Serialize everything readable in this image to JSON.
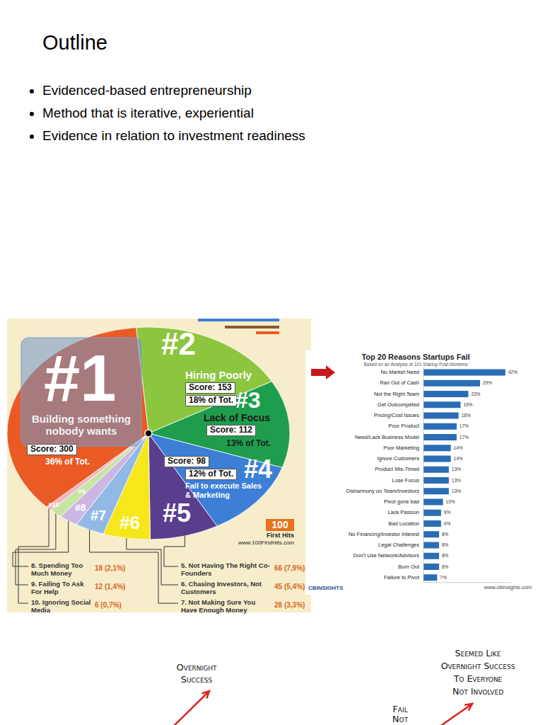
{
  "header": {
    "title": "Outline",
    "bullets": [
      "Evidenced-based entrepreneurship",
      "Method that is iterative, experiential",
      "Evidence in relation to investment readiness"
    ]
  },
  "chart_data": [
    {
      "type": "pie",
      "categories": [
        "Building something nobody wants",
        "Hiring Poorly",
        "Lack of Focus",
        "Fail to execute Sales & Marketing",
        "5. Not Having The Right Co-Founders",
        "6. Chasing Investors, Not Customers",
        "7. Not Making Sure You Have Enough Money",
        "8. Spending Too Much Money",
        "9. Failing To Ask For Help",
        "10. Ignoring Social Media"
      ],
      "values": [
        300,
        153,
        112,
        98,
        66,
        45,
        28,
        18,
        12,
        6
      ],
      "value_labels": [
        "Score: 300",
        "Score: 153",
        "Score: 112",
        "Score: 98",
        "66 (7,9%)",
        "45 (5,4%)",
        "28 (3,3%)",
        "18 (2,1%)",
        "12 (1,4%)",
        "6 (0,7%)"
      ],
      "percent_labels": [
        "36% of Tot.",
        "18% of Tot.",
        "13% of Tot.",
        "12% of Tot.",
        null,
        null,
        null,
        null,
        null,
        null
      ],
      "ranks": [
        "#1",
        "#2",
        "#3",
        "#4",
        "#5",
        "#6",
        "#7",
        "#8",
        "#9",
        "#10"
      ],
      "colors": [
        "#ea5a24",
        "#8cc63f",
        "#1e9e4c",
        "#3d7fd6",
        "#5a3e8e",
        "#f6e71a",
        "#92b9e6",
        "#cdb6e2",
        "#c6e5a3",
        "#f4b6c2"
      ],
      "logo": "100",
      "logo_text": "First Hits",
      "source": "www.100FirstHits.com"
    },
    {
      "type": "bar",
      "orientation": "horizontal",
      "title": "Top 20 Reasons Startups Fail",
      "subtitle": "Based on an Analysis of 101 Startup Post-Mortems",
      "categories": [
        "No Market Need",
        "Ran Out of Cash",
        "Not the Right Team",
        "Get Outcompeted",
        "Pricing/Cost Issues",
        "Poor Product",
        "Need/Lack Business Model",
        "Poor Marketing",
        "Ignore Customers",
        "Product Mis-Timed",
        "Lose Focus",
        "Disharmony on Team/Investors",
        "Pivot gone bad",
        "Lack Passion",
        "Bad Location",
        "No Financing/Investor Interest",
        "Legal Challenges",
        "Don't Use Network/Advisors",
        "Burn Out",
        "Failure to Pivot"
      ],
      "values": [
        42,
        29,
        23,
        19,
        18,
        17,
        17,
        14,
        14,
        13,
        13,
        13,
        10,
        9,
        9,
        8,
        8,
        8,
        8,
        7
      ],
      "value_labels": [
        "42%",
        "29%",
        "23%",
        "19%",
        "18%",
        "17%",
        "17%",
        "14%",
        "14%",
        "13%",
        "13%",
        "13%",
        "10%",
        "9%",
        "9%",
        "8%",
        "8%",
        "8%",
        "8%",
        "7%"
      ],
      "color": "#2a6db5",
      "xlim": [
        0,
        45
      ],
      "data_labels": true,
      "tick_labels": "y",
      "logo": "CBINSIGHTS",
      "source": "www.cbinsights.com"
    }
  ],
  "cartoon": {
    "left": [
      "Overnight",
      "Success"
    ],
    "middle": [
      "Fail",
      "Not"
    ],
    "right": [
      "Seemed Like",
      "Overnight Success",
      "To Everyone",
      "Not Involved"
    ]
  }
}
